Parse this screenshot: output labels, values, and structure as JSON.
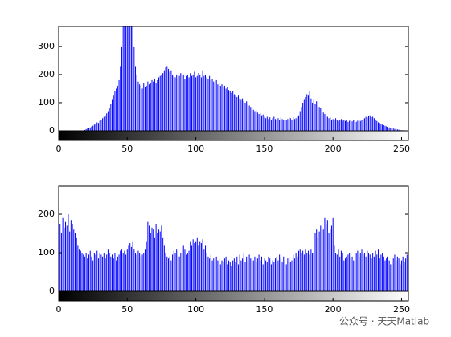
{
  "chart_data": [
    {
      "type": "bar",
      "color": "#0000ff",
      "xlim": [
        0,
        255
      ],
      "ylim": [
        0,
        371
      ],
      "xticks": [
        0,
        50,
        100,
        150,
        200,
        250
      ],
      "yticks": [
        0,
        100,
        200,
        300
      ],
      "x": [
        0,
        1,
        2,
        3,
        4,
        5,
        6,
        7,
        8,
        9,
        10,
        11,
        12,
        13,
        14,
        15,
        16,
        17,
        18,
        19,
        20,
        21,
        22,
        23,
        24,
        25,
        26,
        27,
        28,
        29,
        30,
        31,
        32,
        33,
        34,
        35,
        36,
        37,
        38,
        39,
        40,
        41,
        42,
        43,
        44,
        45,
        46,
        47,
        48,
        49,
        50,
        51,
        52,
        53,
        54,
        55,
        56,
        57,
        58,
        59,
        60,
        61,
        62,
        63,
        64,
        65,
        66,
        67,
        68,
        69,
        70,
        71,
        72,
        73,
        74,
        75,
        76,
        77,
        78,
        79,
        80,
        81,
        82,
        83,
        84,
        85,
        86,
        87,
        88,
        89,
        90,
        91,
        92,
        93,
        94,
        95,
        96,
        97,
        98,
        99,
        100,
        101,
        102,
        103,
        104,
        105,
        106,
        107,
        108,
        109,
        110,
        111,
        112,
        113,
        114,
        115,
        116,
        117,
        118,
        119,
        120,
        121,
        122,
        123,
        124,
        125,
        126,
        127,
        128,
        129,
        130,
        131,
        132,
        133,
        134,
        135,
        136,
        137,
        138,
        139,
        140,
        141,
        142,
        143,
        144,
        145,
        146,
        147,
        148,
        149,
        150,
        151,
        152,
        153,
        154,
        155,
        156,
        157,
        158,
        159,
        160,
        161,
        162,
        163,
        164,
        165,
        166,
        167,
        168,
        169,
        170,
        171,
        172,
        173,
        174,
        175,
        176,
        177,
        178,
        179,
        180,
        181,
        182,
        183,
        184,
        185,
        186,
        187,
        188,
        189,
        190,
        191,
        192,
        193,
        194,
        195,
        196,
        197,
        198,
        199,
        200,
        201,
        202,
        203,
        204,
        205,
        206,
        207,
        208,
        209,
        210,
        211,
        212,
        213,
        214,
        215,
        216,
        217,
        218,
        219,
        220,
        221,
        222,
        223,
        224,
        225,
        226,
        227,
        228,
        229,
        230,
        231,
        232,
        233,
        234,
        235,
        236,
        237,
        238,
        239,
        240,
        241,
        242,
        243,
        244,
        245,
        246,
        247,
        248,
        249,
        250,
        251,
        252,
        253,
        254,
        255
      ],
      "values": [
        0,
        0,
        0,
        0,
        0,
        0,
        0,
        0,
        0,
        0,
        0,
        0,
        0,
        0,
        0,
        0,
        0,
        0,
        0,
        3,
        6,
        8,
        10,
        12,
        15,
        18,
        22,
        25,
        30,
        28,
        35,
        40,
        45,
        50,
        55,
        62,
        70,
        80,
        95,
        110,
        125,
        140,
        150,
        160,
        180,
        230,
        300,
        380,
        420,
        400,
        390,
        410,
        380,
        370,
        420,
        300,
        230,
        200,
        175,
        165,
        160,
        150,
        170,
        155,
        160,
        175,
        165,
        170,
        180,
        175,
        185,
        170,
        180,
        190,
        195,
        200,
        205,
        215,
        225,
        230,
        220,
        210,
        215,
        200,
        195,
        190,
        200,
        185,
        195,
        205,
        190,
        200,
        185,
        195,
        200,
        190,
        205,
        195,
        200,
        210,
        190,
        195,
        205,
        200,
        190,
        215,
        195,
        200,
        190,
        185,
        195,
        180,
        185,
        175,
        170,
        180,
        165,
        170,
        160,
        165,
        155,
        160,
        150,
        155,
        145,
        140,
        135,
        140,
        130,
        125,
        120,
        125,
        115,
        110,
        115,
        105,
        100,
        105,
        95,
        90,
        85,
        80,
        75,
        70,
        72,
        65,
        60,
        62,
        55,
        58,
        50,
        45,
        50,
        42,
        48,
        40,
        45,
        50,
        42,
        38,
        45,
        40,
        48,
        42,
        40,
        45,
        38,
        42,
        50,
        45,
        40,
        48,
        42,
        45,
        50,
        55,
        70,
        85,
        100,
        110,
        120,
        130,
        125,
        140,
        115,
        100,
        110,
        95,
        105,
        90,
        85,
        80,
        70,
        65,
        60,
        55,
        50,
        45,
        48,
        40,
        42,
        38,
        45,
        40,
        35,
        38,
        42,
        36,
        40,
        35,
        38,
        32,
        36,
        40,
        34,
        38,
        35,
        32,
        36,
        40,
        35,
        38,
        42,
        45,
        50,
        48,
        52,
        55,
        48,
        50,
        45,
        40,
        35,
        30,
        28,
        25,
        22,
        20,
        18,
        16,
        14,
        12,
        10,
        9,
        8,
        7,
        6,
        5,
        4,
        3,
        2,
        2,
        1,
        0,
        0,
        0
      ]
    },
    {
      "type": "bar",
      "color": "#0000ff",
      "xlim": [
        0,
        255
      ],
      "ylim": [
        0,
        273
      ],
      "xticks": [
        0,
        50,
        100,
        150,
        200,
        250
      ],
      "yticks": [
        0,
        100,
        200
      ],
      "x": [
        0,
        1,
        2,
        3,
        4,
        5,
        6,
        7,
        8,
        9,
        10,
        11,
        12,
        13,
        14,
        15,
        16,
        17,
        18,
        19,
        20,
        21,
        22,
        23,
        24,
        25,
        26,
        27,
        28,
        29,
        30,
        31,
        32,
        33,
        34,
        35,
        36,
        37,
        38,
        39,
        40,
        41,
        42,
        43,
        44,
        45,
        46,
        47,
        48,
        49,
        50,
        51,
        52,
        53,
        54,
        55,
        56,
        57,
        58,
        59,
        60,
        61,
        62,
        63,
        64,
        65,
        66,
        67,
        68,
        69,
        70,
        71,
        72,
        73,
        74,
        75,
        76,
        77,
        78,
        79,
        80,
        81,
        82,
        83,
        84,
        85,
        86,
        87,
        88,
        89,
        90,
        91,
        92,
        93,
        94,
        95,
        96,
        97,
        98,
        99,
        100,
        101,
        102,
        103,
        104,
        105,
        106,
        107,
        108,
        109,
        110,
        111,
        112,
        113,
        114,
        115,
        116,
        117,
        118,
        119,
        120,
        121,
        122,
        123,
        124,
        125,
        126,
        127,
        128,
        129,
        130,
        131,
        132,
        133,
        134,
        135,
        136,
        137,
        138,
        139,
        140,
        141,
        142,
        143,
        144,
        145,
        146,
        147,
        148,
        149,
        150,
        151,
        152,
        153,
        154,
        155,
        156,
        157,
        158,
        159,
        160,
        161,
        162,
        163,
        164,
        165,
        166,
        167,
        168,
        169,
        170,
        171,
        172,
        173,
        174,
        175,
        176,
        177,
        178,
        179,
        180,
        181,
        182,
        183,
        184,
        185,
        186,
        187,
        188,
        189,
        190,
        191,
        192,
        193,
        194,
        195,
        196,
        197,
        198,
        199,
        200,
        201,
        202,
        203,
        204,
        205,
        206,
        207,
        208,
        209,
        210,
        211,
        212,
        213,
        214,
        215,
        216,
        217,
        218,
        219,
        220,
        221,
        222,
        223,
        224,
        225,
        226,
        227,
        228,
        229,
        230,
        231,
        232,
        233,
        234,
        235,
        236,
        237,
        238,
        239,
        240,
        241,
        242,
        243,
        244,
        245,
        246,
        247,
        248,
        249,
        250,
        251,
        252,
        253,
        254,
        255
      ],
      "values": [
        160,
        175,
        150,
        190,
        165,
        180,
        170,
        200,
        155,
        185,
        175,
        160,
        150,
        140,
        120,
        110,
        105,
        100,
        95,
        90,
        100,
        85,
        95,
        105,
        90,
        80,
        100,
        95,
        105,
        85,
        100,
        95,
        90,
        100,
        85,
        95,
        110,
        100,
        90,
        95,
        85,
        100,
        80,
        90,
        95,
        105,
        110,
        100,
        105,
        95,
        110,
        120,
        125,
        115,
        130,
        110,
        100,
        95,
        105,
        100,
        90,
        95,
        100,
        110,
        130,
        180,
        170,
        150,
        165,
        160,
        140,
        175,
        150,
        160,
        155,
        170,
        140,
        120,
        100,
        90,
        85,
        90,
        80,
        95,
        105,
        100,
        110,
        95,
        90,
        100,
        115,
        120,
        110,
        95,
        100,
        105,
        130,
        120,
        135,
        125,
        130,
        140,
        120,
        130,
        125,
        135,
        110,
        120,
        100,
        90,
        85,
        95,
        80,
        85,
        75,
        90,
        80,
        85,
        70,
        80,
        75,
        85,
        90,
        70,
        80,
        75,
        65,
        80,
        85,
        75,
        90,
        70,
        95,
        80,
        85,
        100,
        75,
        90,
        80,
        95,
        85,
        70,
        80,
        90,
        75,
        85,
        95,
        80,
        90,
        70,
        85,
        80,
        75,
        90,
        85,
        70,
        80,
        75,
        85,
        90,
        80,
        95,
        85,
        75,
        90,
        80,
        70,
        85,
        90,
        75,
        80,
        95,
        85,
        100,
        90,
        105,
        110,
        100,
        105,
        95,
        110,
        100,
        105,
        95,
        110,
        100,
        100,
        150,
        160,
        140,
        155,
        170,
        180,
        160,
        190,
        175,
        185,
        150,
        160,
        170,
        190,
        120,
        100,
        95,
        110,
        90,
        105,
        100,
        80,
        85,
        90,
        95,
        100,
        85,
        90,
        80,
        95,
        100,
        105,
        90,
        100,
        110,
        95,
        100,
        90,
        105,
        100,
        95,
        85,
        100,
        90,
        105,
        95,
        110,
        85,
        95,
        100,
        90,
        80,
        85,
        90,
        80,
        70,
        75,
        85,
        95,
        80,
        90,
        85,
        70,
        80,
        90,
        75,
        85,
        95,
        90
      ]
    }
  ],
  "watermark": "公众号 · 天天Matlab"
}
